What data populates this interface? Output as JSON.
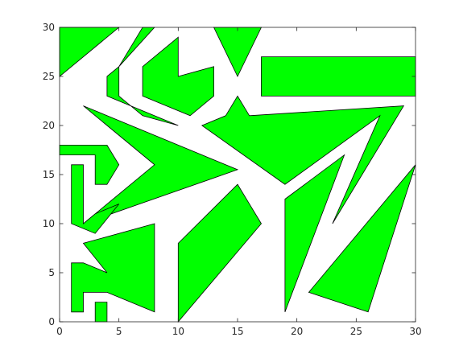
{
  "chart_data": {
    "type": "polygon-plot",
    "xlim": [
      0,
      30
    ],
    "ylim": [
      0,
      30
    ],
    "xticks": [
      0,
      5,
      10,
      15,
      20,
      25,
      30
    ],
    "yticks": [
      0,
      5,
      10,
      15,
      20,
      25,
      30
    ],
    "grid": false,
    "fill_color": "#00ff00",
    "edge_color": "#000000",
    "axis_color": "#262626",
    "polygons": [
      {
        "points": [
          [
            0,
            25
          ],
          [
            0,
            30
          ],
          [
            5,
            30
          ]
        ]
      },
      {
        "points": [
          [
            4,
            23
          ],
          [
            4,
            25
          ],
          [
            5,
            26
          ],
          [
            8,
            30
          ],
          [
            7,
            30
          ],
          [
            5,
            26
          ],
          [
            5,
            23
          ],
          [
            7,
            21
          ],
          [
            10,
            20
          ]
        ]
      },
      {
        "points": [
          [
            7,
            23
          ],
          [
            7,
            26
          ],
          [
            10,
            29
          ],
          [
            10,
            25
          ],
          [
            13,
            26
          ],
          [
            13,
            23
          ],
          [
            11,
            21
          ]
        ]
      },
      {
        "points": [
          [
            13,
            30
          ],
          [
            17,
            30
          ],
          [
            15,
            25
          ]
        ]
      },
      {
        "points": [
          [
            17,
            23
          ],
          [
            17,
            27
          ],
          [
            30,
            27
          ],
          [
            30,
            23
          ]
        ]
      },
      {
        "points": [
          [
            2,
            22
          ],
          [
            15,
            15.5
          ],
          [
            2,
            10
          ],
          [
            8,
            16
          ]
        ]
      },
      {
        "points": [
          [
            12,
            20
          ],
          [
            14,
            21
          ],
          [
            15,
            23
          ],
          [
            16,
            21
          ],
          [
            29,
            22
          ],
          [
            23,
            10
          ],
          [
            27,
            21
          ],
          [
            19,
            14
          ]
        ]
      },
      {
        "points": [
          [
            0,
            17
          ],
          [
            0,
            18
          ],
          [
            4,
            18
          ],
          [
            5,
            16
          ],
          [
            4,
            14
          ],
          [
            3,
            14
          ],
          [
            3,
            17
          ]
        ]
      },
      {
        "points": [
          [
            1,
            10
          ],
          [
            1,
            16
          ],
          [
            2,
            16
          ],
          [
            2,
            10
          ],
          [
            3,
            11
          ],
          [
            5,
            12
          ],
          [
            3,
            9
          ]
        ]
      },
      {
        "points": [
          [
            2,
            8
          ],
          [
            4,
            5
          ],
          [
            2,
            6
          ],
          [
            1,
            6
          ],
          [
            1,
            1
          ],
          [
            2,
            1
          ],
          [
            2,
            3
          ],
          [
            4,
            3
          ],
          [
            8,
            1
          ],
          [
            8,
            10
          ]
        ]
      },
      {
        "points": [
          [
            3,
            0
          ],
          [
            3,
            2
          ],
          [
            4,
            2
          ],
          [
            4,
            0
          ]
        ]
      },
      {
        "points": [
          [
            10,
            0
          ],
          [
            10,
            8
          ],
          [
            15,
            14
          ],
          [
            17,
            10
          ]
        ]
      },
      {
        "points": [
          [
            19,
            1
          ],
          [
            19,
            12.5
          ],
          [
            24,
            17
          ]
        ]
      },
      {
        "points": [
          [
            21,
            3
          ],
          [
            26,
            1
          ],
          [
            30,
            16
          ]
        ]
      }
    ]
  }
}
